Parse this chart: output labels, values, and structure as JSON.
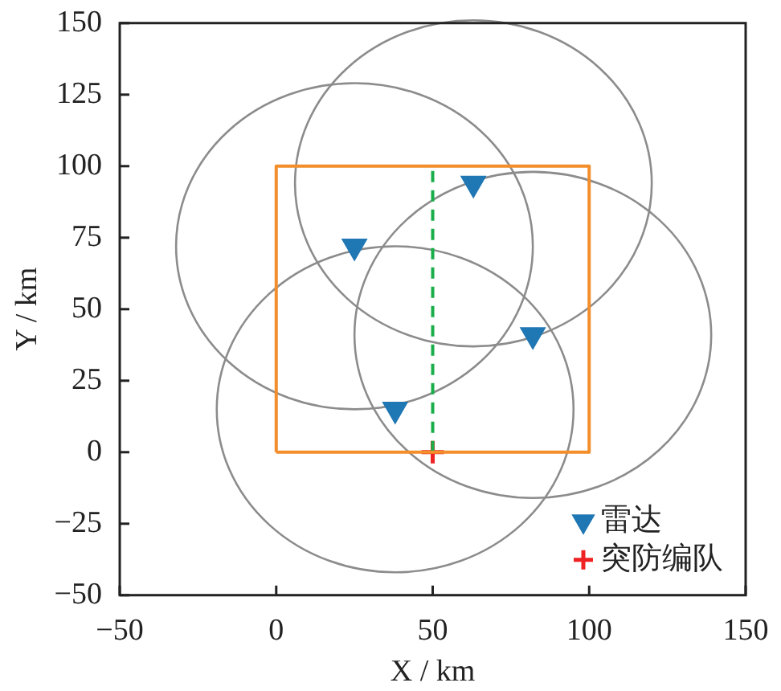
{
  "chart_data": {
    "type": "line",
    "xlabel": "X / km",
    "ylabel": "Y / km",
    "xlim": [
      -50,
      150
    ],
    "ylim": [
      -50,
      150
    ],
    "xticks": [
      {
        "value": -50,
        "label": "−50"
      },
      0,
      50,
      100,
      150
    ],
    "yticks": [
      {
        "value": -50,
        "label": "−50"
      },
      {
        "value": -25,
        "label": "−25"
      },
      0,
      25,
      50,
      75,
      100,
      125,
      150
    ],
    "grid": false,
    "legend": "bottom right",
    "series": [
      {
        "color": "#f28e2b",
        "marker": "none",
        "x": [
          0,
          0,
          100,
          100
        ],
        "values": [
          0,
          100,
          100,
          0
        ]
      },
      {
        "color": "#f28e2b",
        "marker": "none",
        "x": [
          0,
          100
        ],
        "values": [
          0,
          0
        ]
      },
      {
        "color": "#1aae4a",
        "marker": "none",
        "line_style": "dashed",
        "x": [
          50,
          50
        ],
        "values": [
          0,
          100
        ]
      },
      {
        "type": "scatter",
        "name": "雷达",
        "color": "#1f77b4",
        "marker": "triangle",
        "x": [
          25,
          63,
          82,
          38
        ],
        "values": [
          72,
          94,
          41,
          15
        ]
      },
      {
        "type": "scatter",
        "name": "突防编队",
        "color": "#ee2222",
        "marker": "cross",
        "x": [
          50
        ],
        "values": [
          0
        ]
      }
    ]
  }
}
